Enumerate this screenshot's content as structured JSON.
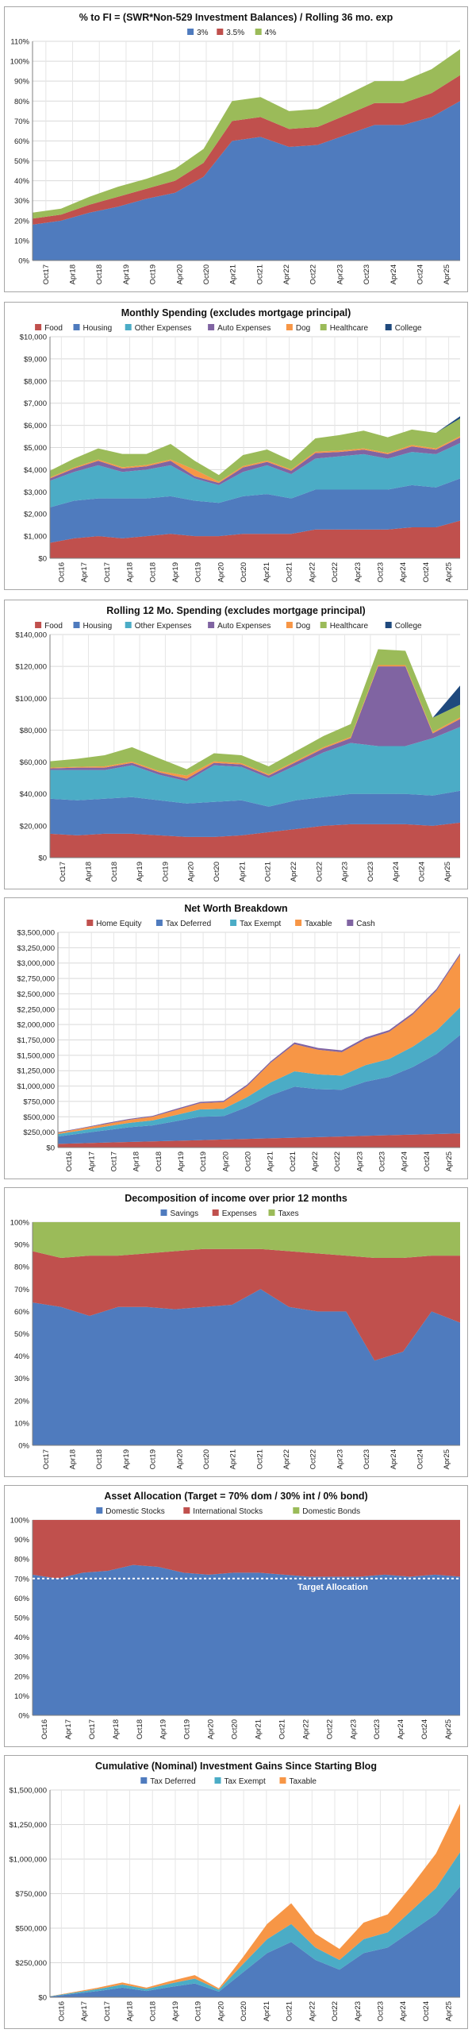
{
  "colors": {
    "blue": "#4f7bbe",
    "red": "#c0504d",
    "green": "#9bbb59",
    "purple": "#8064a2",
    "orange": "#f79646",
    "teal": "#4bacc6",
    "navy": "#1f497d",
    "lightgreen": "#9bbb59",
    "gray": "#8c8c8c"
  },
  "chart_data": [
    {
      "type": "area",
      "title": "% to FI = (SWR*Non-529 Investment Balances) / Rolling 36 mo. exp",
      "x": [
        "Oct17",
        "Apr18",
        "Oct18",
        "Apr19",
        "Oct19",
        "Apr20",
        "Oct20",
        "Apr21",
        "Oct21",
        "Apr22",
        "Oct22",
        "Apr23",
        "Oct23",
        "Apr24",
        "Oct24",
        "Apr25"
      ],
      "ylim": [
        0,
        110
      ],
      "yticks": [
        "0%",
        "10%",
        "20%",
        "30%",
        "40%",
        "50%",
        "60%",
        "70%",
        "80%",
        "90%",
        "100%",
        "110%"
      ],
      "series": [
        {
          "name": "3%",
          "values": [
            18,
            20,
            24,
            27,
            31,
            34,
            42,
            60,
            62,
            57,
            58,
            63,
            68,
            68,
            72,
            80
          ]
        },
        {
          "name": "3.5%",
          "values": [
            3,
            3,
            4,
            5,
            5,
            6,
            7,
            10,
            10,
            9,
            9,
            10,
            11,
            11,
            12,
            13
          ]
        },
        {
          "name": "4%",
          "values": [
            3,
            3,
            4,
            5,
            5,
            6,
            7,
            10,
            10,
            9,
            9,
            10,
            11,
            11,
            12,
            13
          ]
        }
      ]
    },
    {
      "type": "area",
      "title": "Monthly Spending (excludes mortgage principal)",
      "x": [
        "Oct16",
        "Apr17",
        "Oct17",
        "Apr18",
        "Oct18",
        "Apr19",
        "Oct19",
        "Apr20",
        "Oct20",
        "Apr21",
        "Oct21",
        "Apr22",
        "Oct22",
        "Apr23",
        "Oct23",
        "Apr24",
        "Oct24",
        "Apr25"
      ],
      "ylim": [
        0,
        10000
      ],
      "yticks": [
        "$0",
        "$1,000",
        "$2,000",
        "$3,000",
        "$4,000",
        "$5,000",
        "$6,000",
        "$7,000",
        "$8,000",
        "$9,000",
        "$10,000"
      ],
      "series": [
        {
          "name": "Food",
          "values": [
            700,
            900,
            1000,
            900,
            1000,
            1100,
            1000,
            1000,
            1100,
            1100,
            1100,
            1300,
            1300,
            1300,
            1300,
            1400,
            1400,
            1700
          ]
        },
        {
          "name": "Housing",
          "values": [
            1600,
            1700,
            1700,
            1800,
            1700,
            1700,
            1600,
            1500,
            1700,
            1800,
            1600,
            1800,
            1800,
            1800,
            1800,
            1900,
            1800,
            1900
          ]
        },
        {
          "name": "Other Expenses",
          "values": [
            1200,
            1300,
            1500,
            1200,
            1300,
            1400,
            1000,
            800,
            1100,
            1300,
            1100,
            1400,
            1500,
            1600,
            1400,
            1500,
            1500,
            1600
          ]
        },
        {
          "name": "Auto Expenses",
          "values": [
            100,
            150,
            200,
            150,
            150,
            200,
            100,
            100,
            200,
            150,
            150,
            250,
            200,
            200,
            200,
            250,
            200,
            250
          ]
        },
        {
          "name": "Dog",
          "values": [
            50,
            50,
            60,
            60,
            60,
            60,
            300,
            60,
            60,
            60,
            60,
            60,
            60,
            60,
            60,
            60,
            60,
            60
          ]
        },
        {
          "name": "Healthcare",
          "values": [
            300,
            400,
            500,
            600,
            500,
            700,
            400,
            300,
            500,
            500,
            400,
            600,
            700,
            800,
            700,
            700,
            700,
            800
          ]
        },
        {
          "name": "College",
          "values": [
            0,
            0,
            0,
            0,
            0,
            0,
            0,
            0,
            0,
            0,
            0,
            0,
            0,
            0,
            0,
            0,
            0,
            100
          ]
        }
      ]
    },
    {
      "type": "area",
      "title": "Rolling 12 Mo. Spending (excludes mortgage principal)",
      "x": [
        "Oct17",
        "Apr18",
        "Oct18",
        "Apr19",
        "Oct19",
        "Apr20",
        "Oct20",
        "Apr21",
        "Oct21",
        "Apr22",
        "Oct22",
        "Apr23",
        "Oct23",
        "Apr24",
        "Oct24",
        "Apr25"
      ],
      "ylim": [
        0,
        140000
      ],
      "yticks": [
        "$0",
        "$20,000",
        "$40,000",
        "$60,000",
        "$80,000",
        "$100,000",
        "$120,000",
        "$140,000"
      ],
      "series": [
        {
          "name": "Food",
          "values": [
            15000,
            14000,
            15000,
            15000,
            14000,
            13000,
            13000,
            14000,
            16000,
            18000,
            20000,
            21000,
            21000,
            21000,
            20000,
            22000
          ]
        },
        {
          "name": "Housing",
          "values": [
            22000,
            22000,
            22000,
            23000,
            22000,
            21000,
            22000,
            22000,
            16000,
            18000,
            18000,
            19000,
            19000,
            19000,
            19000,
            20000
          ]
        },
        {
          "name": "Other Expenses",
          "values": [
            18000,
            19000,
            18000,
            20000,
            16000,
            14000,
            23000,
            21000,
            18000,
            22000,
            28000,
            32000,
            30000,
            30000,
            36000,
            40000
          ]
        },
        {
          "name": "Auto Expenses",
          "values": [
            1000,
            1500,
            1500,
            1500,
            1500,
            1500,
            1500,
            1500,
            1500,
            2000,
            2500,
            3000,
            50000,
            50000,
            3000,
            5000
          ]
        },
        {
          "name": "Dog",
          "values": [
            500,
            500,
            800,
            800,
            800,
            2000,
            1000,
            800,
            800,
            800,
            800,
            800,
            800,
            800,
            800,
            1000
          ]
        },
        {
          "name": "Healthcare",
          "values": [
            4000,
            5000,
            7000,
            9000,
            8000,
            4000,
            5000,
            5000,
            5000,
            6000,
            7000,
            8000,
            10000,
            9000,
            9000,
            8000
          ]
        },
        {
          "name": "College",
          "values": [
            0,
            0,
            0,
            0,
            0,
            0,
            0,
            0,
            0,
            0,
            0,
            0,
            0,
            0,
            0,
            12000
          ]
        }
      ]
    },
    {
      "type": "area",
      "title": "Net Worth Breakdown",
      "x": [
        "Oct16",
        "Apr17",
        "Oct17",
        "Apr18",
        "Oct18",
        "Apr19",
        "Oct19",
        "Apr20",
        "Oct20",
        "Apr21",
        "Oct21",
        "Apr22",
        "Oct22",
        "Apr23",
        "Oct23",
        "Apr24",
        "Oct24",
        "Apr25"
      ],
      "ylim": [
        0,
        3500000
      ],
      "yticks": [
        "$0",
        "$250,000",
        "$500,000",
        "$750,000",
        "$1,000,000",
        "$1,250,000",
        "$1,500,000",
        "$1,750,000",
        "$2,000,000",
        "$2,250,000",
        "$2,500,000",
        "$2,750,000",
        "$3,000,000",
        "$3,250,000",
        "$3,500,000"
      ],
      "series": [
        {
          "name": "Home Equity",
          "values": [
            60000,
            70000,
            80000,
            90000,
            100000,
            110000,
            120000,
            130000,
            140000,
            150000,
            160000,
            170000,
            180000,
            190000,
            200000,
            210000,
            220000,
            230000
          ]
        },
        {
          "name": "Tax Deferred",
          "values": [
            120000,
            160000,
            200000,
            240000,
            260000,
            320000,
            380000,
            380000,
            520000,
            700000,
            830000,
            780000,
            760000,
            880000,
            950000,
            1100000,
            1300000,
            1600000
          ]
        },
        {
          "name": "Tax Exempt",
          "values": [
            40000,
            50000,
            60000,
            70000,
            80000,
            100000,
            120000,
            120000,
            160000,
            210000,
            250000,
            240000,
            230000,
            270000,
            290000,
            330000,
            380000,
            450000
          ]
        },
        {
          "name": "Taxable",
          "values": [
            20000,
            30000,
            40000,
            50000,
            60000,
            80000,
            100000,
            110000,
            180000,
            320000,
            440000,
            400000,
            380000,
            420000,
            440000,
            520000,
            650000,
            850000
          ]
        },
        {
          "name": "Cash",
          "values": [
            10000,
            10000,
            15000,
            15000,
            15000,
            20000,
            20000,
            20000,
            25000,
            25000,
            30000,
            30000,
            30000,
            30000,
            30000,
            30000,
            30000,
            30000
          ]
        }
      ]
    },
    {
      "type": "area",
      "title": "Decomposition of income over prior 12 months",
      "x": [
        "Oct17",
        "Apr18",
        "Oct18",
        "Apr19",
        "Oct19",
        "Apr20",
        "Oct20",
        "Apr21",
        "Oct21",
        "Apr22",
        "Oct22",
        "Apr23",
        "Oct23",
        "Apr24",
        "Oct24",
        "Apr25"
      ],
      "ylim": [
        0,
        100
      ],
      "yticks": [
        "0%",
        "10%",
        "20%",
        "30%",
        "40%",
        "50%",
        "60%",
        "70%",
        "80%",
        "90%",
        "100%"
      ],
      "series": [
        {
          "name": "Savings",
          "values": [
            64,
            62,
            58,
            62,
            62,
            61,
            62,
            63,
            70,
            62,
            60,
            60,
            38,
            42,
            60,
            55
          ]
        },
        {
          "name": "Expenses",
          "values": [
            23,
            22,
            27,
            23,
            24,
            26,
            26,
            25,
            18,
            25,
            26,
            25,
            46,
            42,
            25,
            30
          ]
        },
        {
          "name": "Taxes",
          "values": [
            13,
            16,
            15,
            15,
            14,
            13,
            12,
            12,
            12,
            13,
            14,
            15,
            16,
            16,
            15,
            15
          ]
        }
      ]
    },
    {
      "type": "area",
      "title": "Asset Allocation (Target = 70% dom / 30% int / 0% bond)",
      "x": [
        "Oct16",
        "Apr17",
        "Oct17",
        "Apr18",
        "Oct18",
        "Apr19",
        "Oct19",
        "Apr20",
        "Oct20",
        "Apr21",
        "Oct21",
        "Apr22",
        "Oct22",
        "Apr23",
        "Oct23",
        "Apr24",
        "Oct24",
        "Apr25"
      ],
      "ylim": [
        0,
        100
      ],
      "yticks": [
        "0%",
        "10%",
        "20%",
        "30%",
        "40%",
        "50%",
        "60%",
        "70%",
        "80%",
        "90%",
        "100%"
      ],
      "annotation": "Target Allocation",
      "target": 70,
      "series": [
        {
          "name": "Domestic Stocks",
          "values": [
            72,
            70,
            73,
            74,
            77,
            76,
            73,
            72,
            73,
            73,
            72,
            71,
            71,
            71,
            72,
            71,
            72,
            71
          ]
        },
        {
          "name": "International Stocks",
          "values": [
            28,
            30,
            27,
            26,
            23,
            24,
            27,
            28,
            27,
            27,
            28,
            29,
            29,
            29,
            28,
            29,
            28,
            29
          ]
        },
        {
          "name": "Domestic Bonds",
          "values": [
            0,
            0,
            0,
            0,
            0,
            0,
            0,
            0,
            0,
            0,
            0,
            0,
            0,
            0,
            0,
            0,
            0,
            0
          ]
        }
      ]
    },
    {
      "type": "area",
      "title": "Cumulative (Nominal) Investment Gains Since Starting Blog",
      "x": [
        "Oct16",
        "Apr17",
        "Oct17",
        "Apr18",
        "Oct18",
        "Apr19",
        "Oct19",
        "Apr20",
        "Oct20",
        "Apr21",
        "Oct21",
        "Apr22",
        "Oct22",
        "Apr23",
        "Oct23",
        "Apr24",
        "Oct24",
        "Apr25"
      ],
      "ylim": [
        0,
        1500000
      ],
      "yticks": [
        "$0",
        "$250,000",
        "$500,000",
        "$750,000",
        "$1,000,000",
        "$1,250,000",
        "$1,500,000"
      ],
      "series": [
        {
          "name": "Tax Deferred",
          "values": [
            5000,
            25000,
            45000,
            70000,
            45000,
            75000,
            100000,
            40000,
            180000,
            320000,
            400000,
            270000,
            200000,
            320000,
            360000,
            480000,
            600000,
            800000
          ]
        },
        {
          "name": "Tax Exempt",
          "values": [
            2000,
            8000,
            15000,
            22000,
            15000,
            25000,
            35000,
            15000,
            60000,
            100000,
            130000,
            90000,
            70000,
            100000,
            110000,
            150000,
            190000,
            250000
          ]
        },
        {
          "name": "Taxable",
          "values": [
            1000,
            5000,
            10000,
            15000,
            10000,
            18000,
            25000,
            10000,
            50000,
            110000,
            150000,
            100000,
            80000,
            120000,
            130000,
            180000,
            250000,
            350000
          ]
        }
      ]
    }
  ]
}
